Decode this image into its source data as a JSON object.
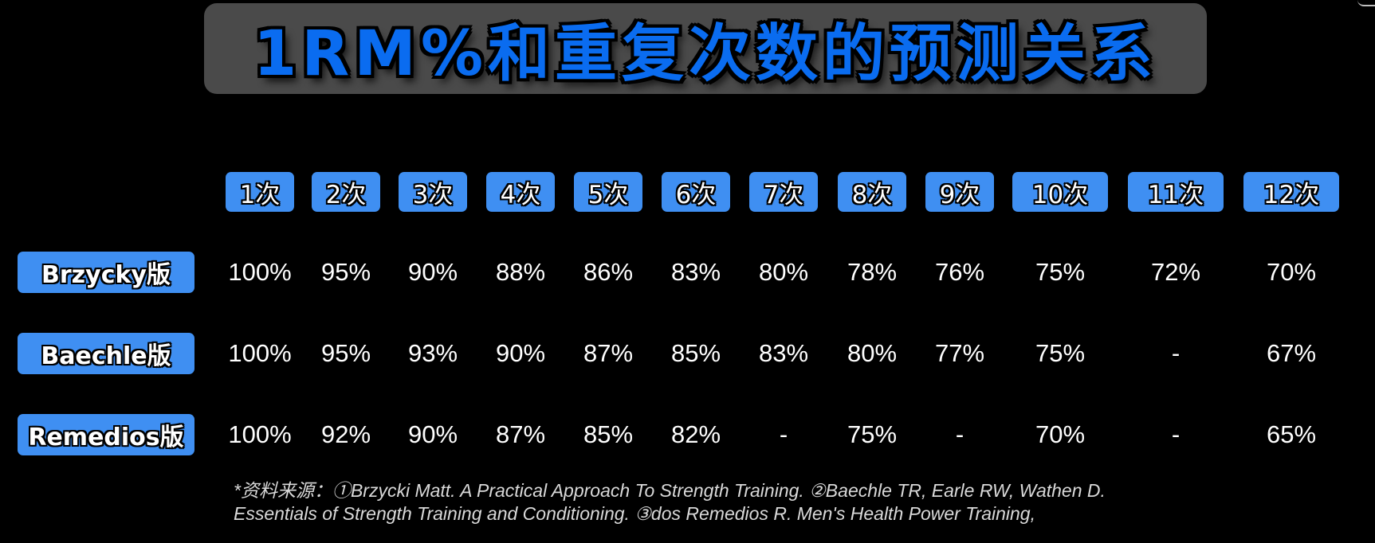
{
  "title": "1RM%和重复次数的预测关系",
  "columns": [
    "1次",
    "2次",
    "3次",
    "4次",
    "5次",
    "6次",
    "7次",
    "8次",
    "9次",
    "10次",
    "11次",
    "12次"
  ],
  "rows": [
    {
      "label": "Brzycky版",
      "values": [
        "100%",
        "95%",
        "90%",
        "88%",
        "86%",
        "83%",
        "80%",
        "78%",
        "76%",
        "75%",
        "72%",
        "70%"
      ]
    },
    {
      "label": "Baechle版",
      "values": [
        "100%",
        "95%",
        "93%",
        "90%",
        "87%",
        "85%",
        "83%",
        "80%",
        "77%",
        "75%",
        "-",
        "67%"
      ]
    },
    {
      "label": "Remedios版",
      "values": [
        "100%",
        "92%",
        "90%",
        "87%",
        "85%",
        "82%",
        "-",
        "75%",
        "-",
        "70%",
        "-",
        "65%"
      ]
    }
  ],
  "source": {
    "line1": "*资料来源：①Brzycki Matt. A Practical Approach To Strength Training. ②Baechle TR, Earle RW, Wathen D.",
    "line2": "Essentials of Strength Training and Conditioning. ③dos Remedios R. Men's Health Power Training,"
  },
  "colors": {
    "background": "#000000",
    "chip": "#3f8ff2",
    "title": "#0a6cf0",
    "banner": "#4a4a4a"
  }
}
